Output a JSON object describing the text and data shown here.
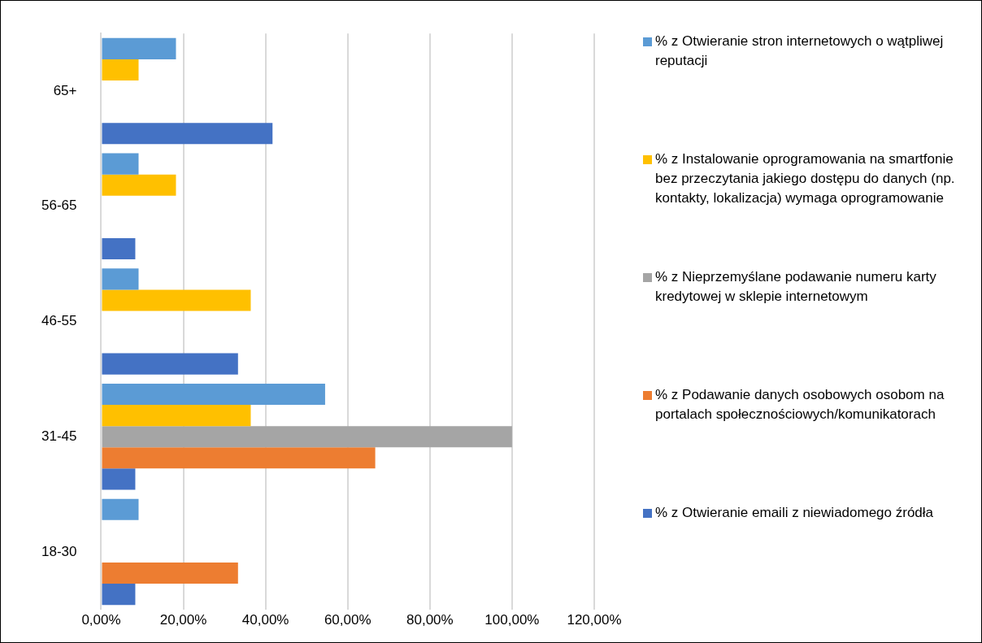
{
  "chart_data": {
    "type": "bar",
    "orientation": "horizontal",
    "categories": [
      "65+",
      "56-65",
      "46-55",
      "31-45",
      "18-30"
    ],
    "series": [
      {
        "name": "% z Otwieranie stron internetowych o wątpliwej reputacji",
        "color": "#5b9bd5",
        "values": [
          18.2,
          9.1,
          9.1,
          54.5,
          9.1
        ]
      },
      {
        "name": "% z Instalowanie oprogramowania na smartfonie bez przeczytania jakiego dostępu do danych (np. kontakty, lokalizacja) wymaga oprogramowanie",
        "color": "#ffc000",
        "values": [
          9.1,
          18.2,
          36.4,
          36.4,
          0
        ]
      },
      {
        "name": "% z Nieprzemyślane podawanie numeru karty kredytowej w sklepie internetowym",
        "color": "#a5a5a5",
        "values": [
          0,
          0,
          0,
          100,
          0
        ]
      },
      {
        "name": "% z Podawanie danych osobowych osobom na portalach społecznościowych/komunikatorach",
        "color": "#ed7d31",
        "values": [
          0,
          0,
          0,
          66.7,
          33.3
        ]
      },
      {
        "name": "% z Otwieranie emaili z niewiadomego źródła",
        "color": "#4472c4",
        "values": [
          41.7,
          8.3,
          33.3,
          8.3,
          8.3
        ]
      }
    ],
    "xlim": [
      0,
      120
    ],
    "xticks": [
      {
        "value": 0,
        "label": "0,00%"
      },
      {
        "value": 20,
        "label": "20,00%"
      },
      {
        "value": 40,
        "label": "40,00%"
      },
      {
        "value": 60,
        "label": "60,00%"
      },
      {
        "value": 80,
        "label": "80,00%"
      },
      {
        "value": 100,
        "label": "100,00%"
      },
      {
        "value": 120,
        "label": "120,00%"
      }
    ],
    "grid": "x",
    "legend": "right"
  }
}
